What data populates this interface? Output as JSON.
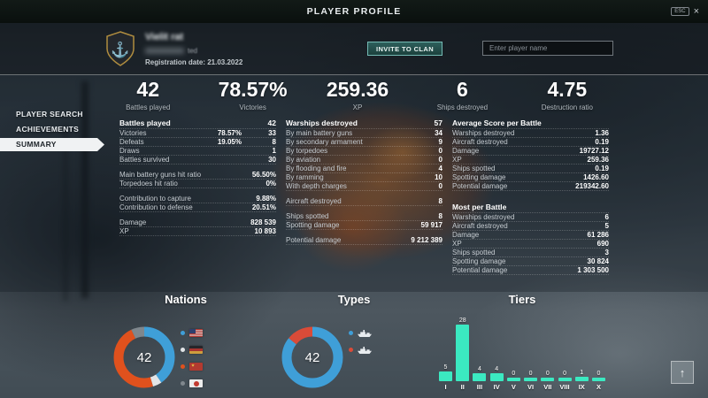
{
  "title_bar": {
    "title": "PLAYER PROFILE",
    "esc_key": "ESC",
    "close": "×"
  },
  "player_header": {
    "name": "Vielit rat",
    "name_suffix": "ted",
    "registration": "Registration date: 21.03.2022",
    "invite_button": "INVITE TO CLAN",
    "search_placeholder": "Enter player name"
  },
  "summary_stats": [
    {
      "value": "42",
      "label": "Battles played"
    },
    {
      "value": "78.57%",
      "label": "Victories"
    },
    {
      "value": "259.36",
      "label": "XP"
    },
    {
      "value": "6",
      "label": "Ships destroyed"
    },
    {
      "value": "4.75",
      "label": "Destruction ratio"
    }
  ],
  "sidebar": {
    "items": [
      {
        "label": "PLAYER SEARCH",
        "active": false
      },
      {
        "label": "ACHIEVEMENTS",
        "active": false
      },
      {
        "label": "SUMMARY",
        "active": true
      }
    ]
  },
  "tables": {
    "left": {
      "title": "Battles played",
      "title_value": "42",
      "rows": [
        {
          "label": "Victories",
          "mid": "78.57%",
          "value": "33"
        },
        {
          "label": "Defeats",
          "mid": "19.05%",
          "value": "8"
        },
        {
          "label": "Draws",
          "value": "1"
        },
        {
          "label": "Battles survived",
          "value": "30"
        },
        {
          "spacer": true
        },
        {
          "label": "Main battery guns hit ratio",
          "value": "56.50%"
        },
        {
          "label": "Torpedoes hit ratio",
          "value": "0%"
        },
        {
          "spacer": true
        },
        {
          "label": "Contribution to capture",
          "value": "9.88%"
        },
        {
          "label": "Contribution to defense",
          "value": "20.51%"
        },
        {
          "spacer": true
        },
        {
          "label": "Damage",
          "value": "828 539"
        },
        {
          "label": "XP",
          "value": "10 893"
        }
      ]
    },
    "middle": {
      "title": "Warships destroyed",
      "title_value": "57",
      "rows": [
        {
          "label": "By main battery guns",
          "value": "34"
        },
        {
          "label": "By secondary armament",
          "value": "9"
        },
        {
          "label": "By torpedoes",
          "value": "0"
        },
        {
          "label": "By aviation",
          "value": "0"
        },
        {
          "label": "By flooding and fire",
          "value": "4"
        },
        {
          "label": "By ramming",
          "value": "10"
        },
        {
          "label": "With depth charges",
          "value": "0"
        },
        {
          "spacer": true
        },
        {
          "label": "Aircraft destroyed",
          "value": "8"
        },
        {
          "spacer": true
        },
        {
          "label": "Ships spotted",
          "value": "8"
        },
        {
          "label": "Spotting damage",
          "value": "59 917"
        },
        {
          "spacer": true
        },
        {
          "label": "Potential damage",
          "value": "9 212 389"
        }
      ]
    },
    "right_top": {
      "title": "Average Score per Battle",
      "title_value": "",
      "rows": [
        {
          "label": "Warships destroyed",
          "value": "1.36"
        },
        {
          "label": "Aircraft destroyed",
          "value": "0.19"
        },
        {
          "label": "Damage",
          "value": "19727.12"
        },
        {
          "label": "XP",
          "value": "259.36"
        },
        {
          "label": "Ships spotted",
          "value": "0.19"
        },
        {
          "label": "Spotting damage",
          "value": "1426.60"
        },
        {
          "label": "Potential damage",
          "value": "219342.60"
        }
      ]
    },
    "right_bottom": {
      "title": "Most per Battle",
      "title_value": "",
      "rows": [
        {
          "label": "Warships destroyed",
          "value": "6"
        },
        {
          "label": "Aircraft destroyed",
          "value": "5"
        },
        {
          "label": "Damage",
          "value": "61 286"
        },
        {
          "label": "XP",
          "value": "690"
        },
        {
          "label": "Ships spotted",
          "value": "3"
        },
        {
          "label": "Spotting damage",
          "value": "30 824"
        },
        {
          "label": "Potential damage",
          "value": "1 303 500"
        }
      ]
    }
  },
  "chart_data": [
    {
      "type": "pie",
      "title": "Nations",
      "center_label": "42",
      "total": 42,
      "legend_position": "right",
      "slices": [
        {
          "flag": "usa",
          "color": "#3f9fd8",
          "value": 17
        },
        {
          "flag": "germany",
          "color": "#e2e5e7",
          "value": 2
        },
        {
          "flag": "ussr",
          "color": "#e0511d",
          "value": 20
        },
        {
          "flag": "japan",
          "color": "#7f878d",
          "value": 3
        }
      ]
    },
    {
      "type": "pie",
      "title": "Types",
      "center_label": "42",
      "total": 42,
      "legend_position": "right",
      "slices": [
        {
          "icon": "ship-icon",
          "color": "#3f9fd8",
          "value": 36
        },
        {
          "icon": "ship-icon",
          "color": "#da4b38",
          "value": 6
        }
      ]
    },
    {
      "type": "bar",
      "title": "Tiers",
      "categories": [
        "I",
        "II",
        "III",
        "IV",
        "V",
        "VI",
        "VII",
        "VIII",
        "IX",
        "X"
      ],
      "values": [
        5,
        28,
        4,
        4,
        0,
        0,
        0,
        0,
        1,
        0
      ],
      "bar_color": "#3be9c1",
      "ylim": [
        0,
        28
      ],
      "grid": false,
      "value_labels": true
    }
  ]
}
